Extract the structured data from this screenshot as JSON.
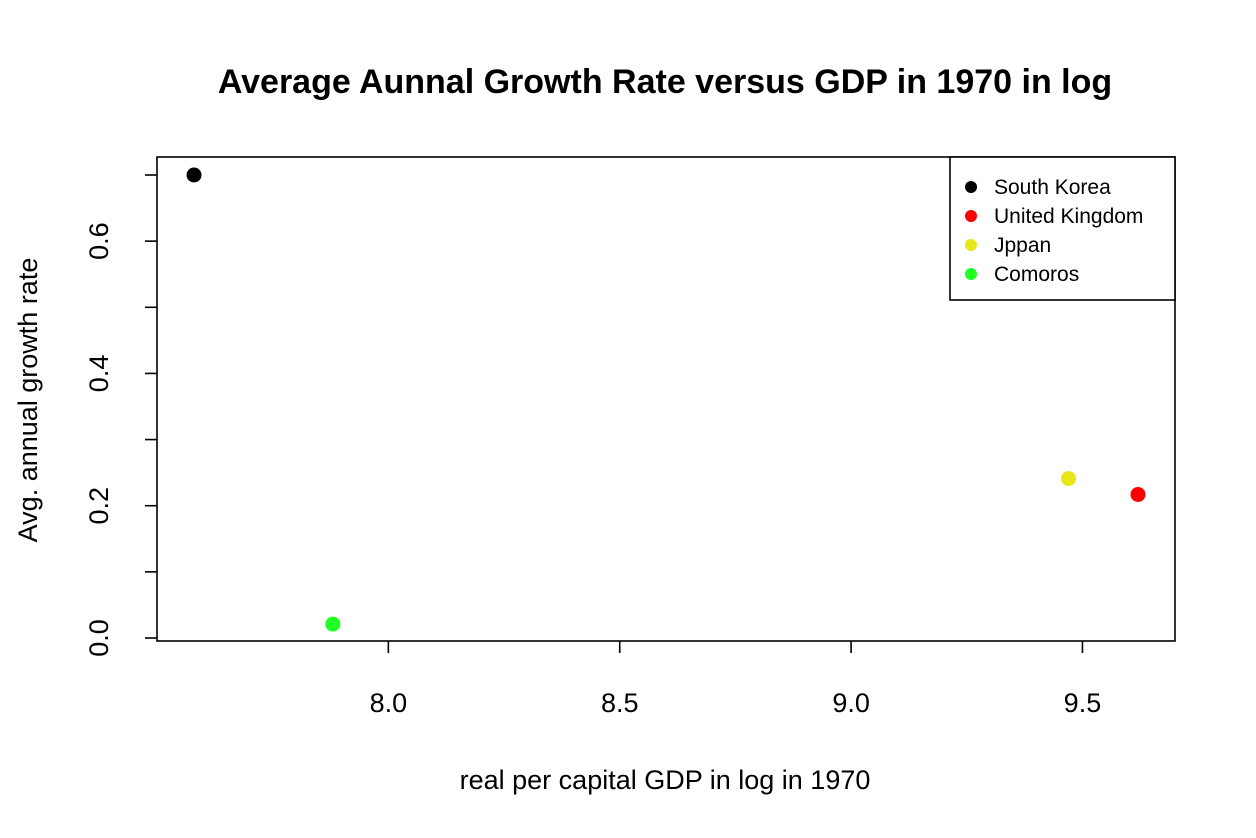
{
  "chart_data": {
    "type": "scatter",
    "title": "Average Aunnal Growth Rate versus GDP in 1970 in log",
    "xlabel": "real per capital GDP in log in 1970",
    "ylabel": "Avg. annual growth rate",
    "xlim": [
      7.5,
      9.7
    ],
    "ylim": [
      0.0,
      0.7
    ],
    "x_ticks": [
      8.0,
      8.5,
      9.0,
      9.5
    ],
    "x_tick_labels": [
      "8.0",
      "8.5",
      "9.0",
      "9.5"
    ],
    "y_ticks": [
      0.0,
      0.1,
      0.2,
      0.3,
      0.4,
      0.5,
      0.6,
      0.7
    ],
    "y_tick_labels": [
      "0.0",
      "",
      "0.2",
      "",
      "0.4",
      "",
      "0.6",
      ""
    ],
    "grid": false,
    "legend_position": "top-right",
    "series": [
      {
        "name": "South Korea",
        "color": "#000000",
        "x": [
          7.58
        ],
        "y": [
          0.7
        ]
      },
      {
        "name": "United Kingdom",
        "color": "#ff0000",
        "x": [
          9.62
        ],
        "y": [
          0.217
        ]
      },
      {
        "name": "Jppan",
        "color": "#e6e619",
        "x": [
          9.47
        ],
        "y": [
          0.241
        ]
      },
      {
        "name": "Comoros",
        "color": "#22ff22",
        "x": [
          7.88
        ],
        "y": [
          0.021
        ]
      }
    ]
  }
}
